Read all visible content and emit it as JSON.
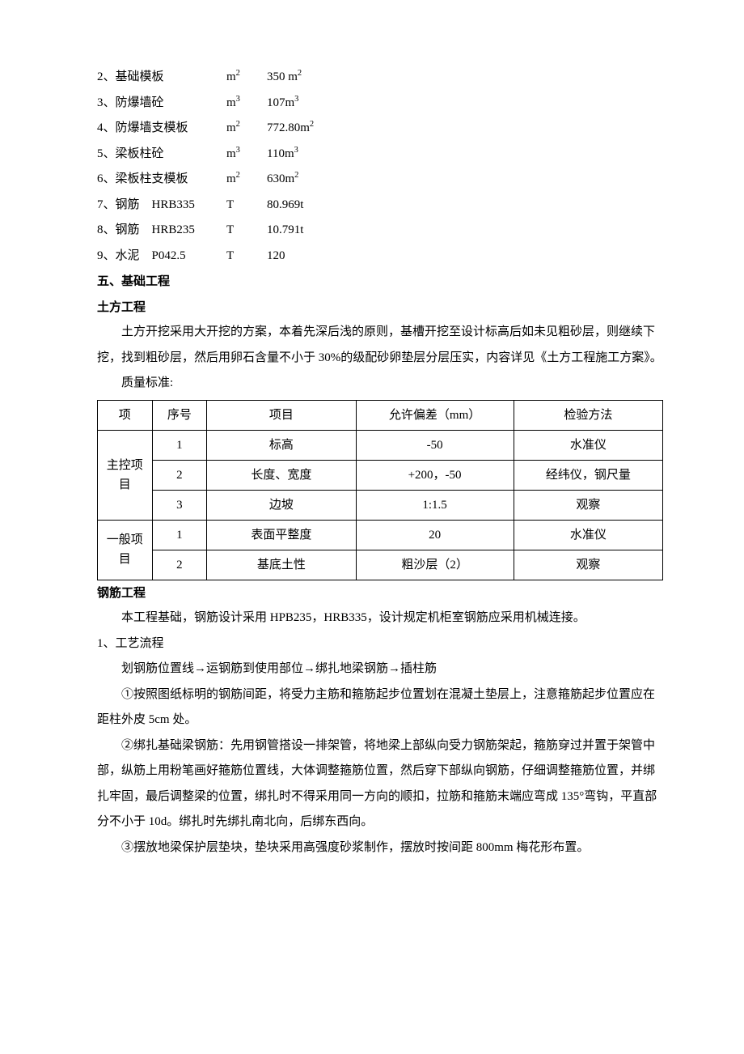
{
  "items": [
    {
      "idx": "2",
      "name": "基础模板",
      "unit_html": "m<sup>2</sup>",
      "value_html": "350 m<sup>2</sup>"
    },
    {
      "idx": "3",
      "name": "防爆墙砼",
      "unit_html": "m<sup>3</sup>",
      "value_html": "107m<sup>3</sup>"
    },
    {
      "idx": "4",
      "name": "防爆墙支模板",
      "unit_html": "m<sup>2</sup>",
      "value_html": "772.80m<sup>2</sup>"
    },
    {
      "idx": "5",
      "name": "梁板柱砼",
      "unit_html": "m<sup>3</sup>",
      "value_html": "110m<sup>3</sup>"
    },
    {
      "idx": "6",
      "name": "梁板柱支模板",
      "unit_html": "m<sup>2</sup>",
      "value_html": "630m<sup>2</sup>"
    },
    {
      "idx": "7",
      "name": "钢筋　HRB335",
      "unit_html": "T",
      "value_html": "80.969t"
    },
    {
      "idx": "8",
      "name": "钢筋　HRB235",
      "unit_html": "T",
      "value_html": "10.791t"
    },
    {
      "idx": "9",
      "name": "水泥　P042.5",
      "unit_html": "T",
      "value_html": "120"
    }
  ],
  "section5": "五、基础工程",
  "earthwork_heading": "土方工程",
  "earthwork_para": "土方开挖采用大开挖的方案，本着先深后浅的原则，基槽开挖至设计标高后如未见粗砂层，则继续下挖，找到粗砂层，然后用卵石含量不小于 30%的级配砂卵垫层分层压实，内容详见《土方工程施工方案》。",
  "quality_label": "质量标准:",
  "table": {
    "header": {
      "cat": "项",
      "seq": "序号",
      "item": "项目",
      "tol": "允许偏差（mm）",
      "method": "检验方法"
    },
    "group1": {
      "label": "主控项目",
      "rows": [
        {
          "seq": "1",
          "item": "标高",
          "tol": "-50",
          "method": "水准仪"
        },
        {
          "seq": "2",
          "item": "长度、宽度",
          "tol": "+200，-50",
          "method": "经纬仪，钢尺量"
        },
        {
          "seq": "3",
          "item": "边坡",
          "tol": "1:1.5",
          "method": "观察"
        }
      ]
    },
    "group2": {
      "label": "一般项目",
      "rows": [
        {
          "seq": "1",
          "item": "表面平整度",
          "tol": "20",
          "method": "水准仪"
        },
        {
          "seq": "2",
          "item": "基底土性",
          "tol": "粗沙层（2）",
          "method": "观察"
        }
      ]
    }
  },
  "rebar_heading": "钢筋工程",
  "rebar_intro": "本工程基础，钢筋设计采用 HPB235，HRB335，设计规定机柜室钢筋应采用机械连接。",
  "process_label": "1、工艺流程",
  "process_line": "划钢筋位置线→运钢筋到使用部位→绑扎地梁钢筋→插柱筋",
  "p1": "①按照图纸标明的钢筋间距，将受力主筋和箍筋起步位置划在混凝土垫层上，注意箍筋起步位置应在距柱外皮 5cm 处。",
  "p2": "②绑扎基础梁钢筋：先用钢管搭设一排架管，将地梁上部纵向受力钢筋架起，箍筋穿过并置于架管中部，纵筋上用粉笔画好箍筋位置线，大体调整箍筋位置，然后穿下部纵向钢筋，仔细调整箍筋位置，并绑扎牢固，最后调整梁的位置，绑扎时不得采用同一方向的顺扣，拉筋和箍筋末端应弯成 135°弯钩，平直部分不小于 10d。绑扎时先绑扎南北向，后绑东西向。",
  "p3": "③摆放地梁保护层垫块，垫块采用高强度砂浆制作，摆放时按间距 800mm 梅花形布置。"
}
